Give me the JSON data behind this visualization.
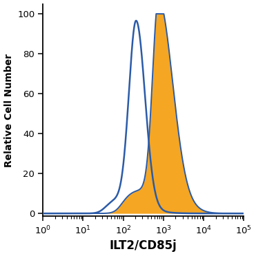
{
  "xlabel": "ILT2/CD85j",
  "ylabel": "Relative Cell Number",
  "xlim_log": [
    1.0,
    100000
  ],
  "ylim": [
    -1.5,
    105
  ],
  "yticks": [
    0,
    20,
    40,
    60,
    80,
    100
  ],
  "blue_color": "#2B5BA8",
  "orange_color": "#F5A623",
  "orange_fill": "#F5A623",
  "bg_color": "#FFFFFF",
  "xlabel_fontsize": 12,
  "ylabel_fontsize": 10,
  "tick_fontsize": 9.5
}
